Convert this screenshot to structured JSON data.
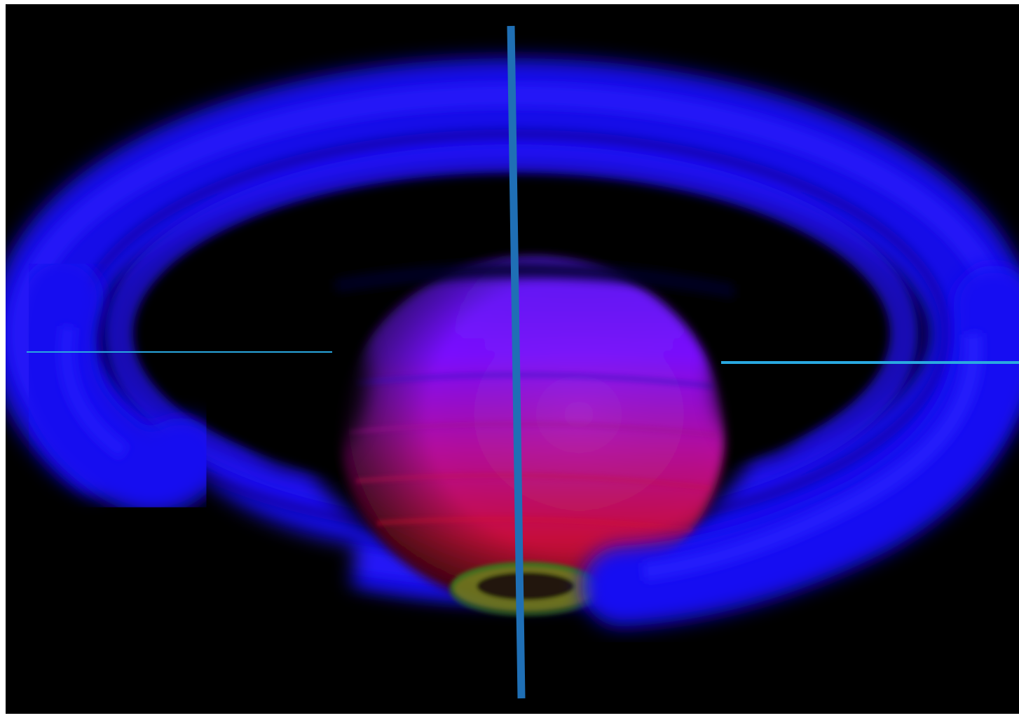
{
  "header": {
    "partial_text": ""
  },
  "image": {
    "subject": "saturn-infrared-icon",
    "colors": {
      "background": "#000000",
      "rings": "#1a12ff",
      "planet_top": "#6a1bff",
      "planet_mid": "#c0119a",
      "planet_bottom": "#d0102a",
      "pole": "#8a8a30"
    }
  },
  "annotations": {
    "line_color_main": "#1f6fb5",
    "line_color_pointer": "#29a8e0",
    "pointer_count": 2
  }
}
